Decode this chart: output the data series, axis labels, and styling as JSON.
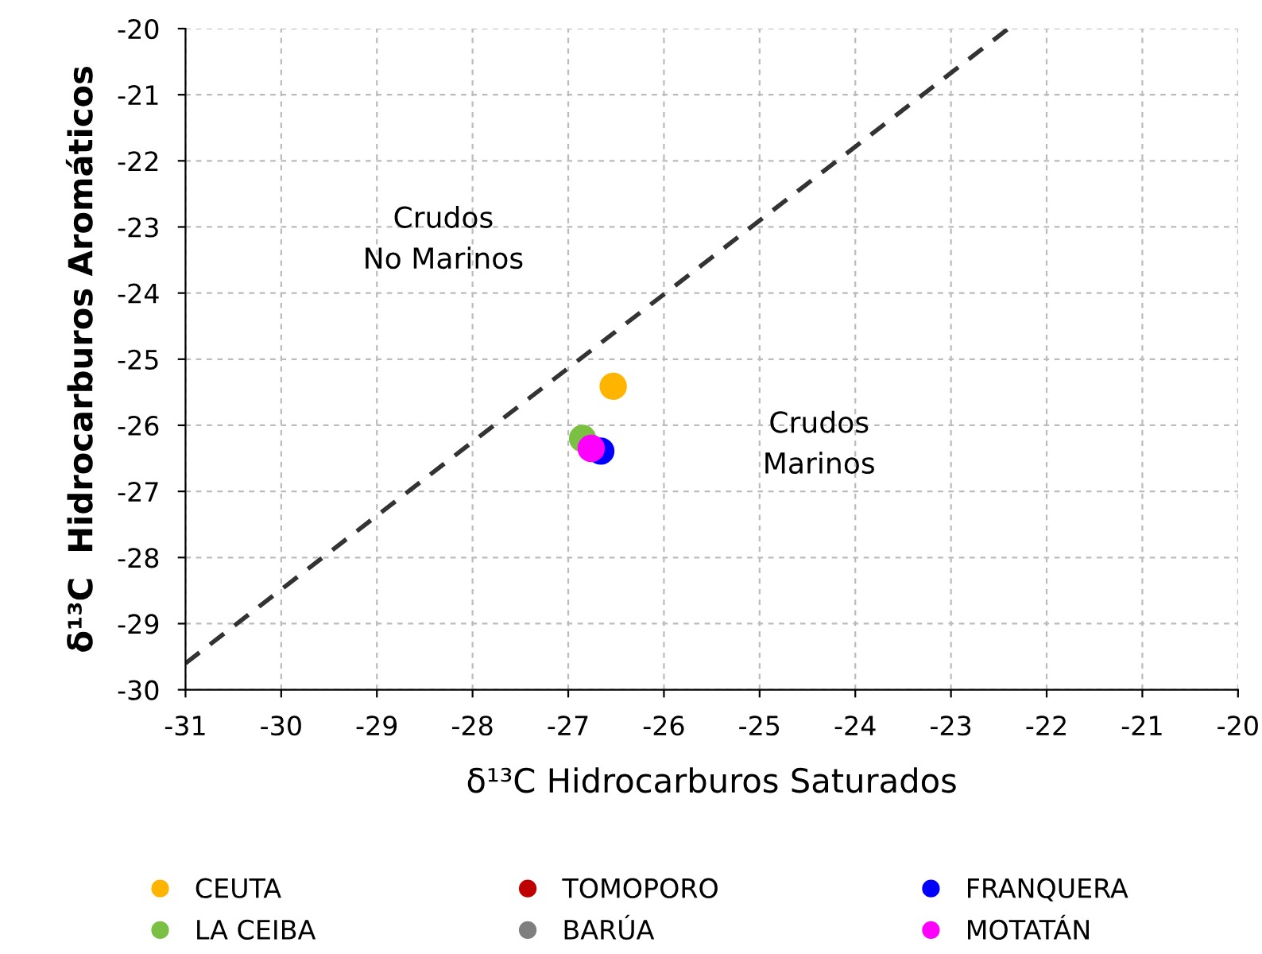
{
  "chart_data": {
    "type": "scatter",
    "xlabel": "δ¹³C Hidrocarburos Saturados",
    "ylabel": "δ¹³C  Hidrocarburos Aromáticos",
    "xlim": [
      -31,
      -20
    ],
    "ylim": [
      -30,
      -20
    ],
    "xticks": [
      -31,
      -30,
      -29,
      -28,
      -27,
      -26,
      -25,
      -24,
      -23,
      -22,
      -21,
      -20
    ],
    "yticks": [
      -30,
      -29,
      -28,
      -27,
      -26,
      -25,
      -24,
      -23,
      -22,
      -21,
      -20
    ],
    "grid": true,
    "legend": "bottom",
    "marker": "circle",
    "series": [
      {
        "name": "CEUTA",
        "color": "#ffb400",
        "x": [
          -26.53
        ],
        "values": [
          -25.41
        ]
      },
      {
        "name": "TOMOPORO",
        "color": "#c00000",
        "x": [
          null
        ],
        "values": [
          null
        ]
      },
      {
        "name": "FRANQUERA",
        "color": "#0000ff",
        "x": [
          -26.66
        ],
        "values": [
          -26.39
        ]
      },
      {
        "name": "LA CEIBA",
        "color": "#7ac143",
        "x": [
          -26.85
        ],
        "values": [
          -26.2
        ]
      },
      {
        "name": "BARÚA",
        "color": "#7f7f7f",
        "x": [
          null
        ],
        "values": [
          null
        ]
      },
      {
        "name": "MOTATÁN",
        "color": "#ff00ff",
        "x": [
          -26.76
        ],
        "values": [
          -26.35
        ]
      },
      {
        "type": "line",
        "marker": "none",
        "color": "#333333",
        "line_style": "dashed",
        "x": [
          -31,
          -22.4
        ],
        "values": [
          -29.6,
          -20
        ]
      }
    ],
    "annotations": [
      "Crudos\nNo Marinos",
      "Crudos\nMarinos"
    ]
  }
}
